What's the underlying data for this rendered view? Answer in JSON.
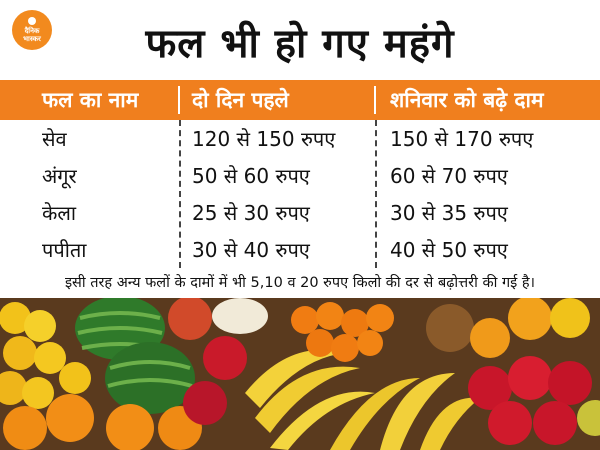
{
  "brand": {
    "logo_text_line1": "दैनिक",
    "logo_text_line2": "भास्कर"
  },
  "headline": "फल भी हो गए महंगे",
  "table": {
    "headers": [
      "फल का नाम",
      "दो दिन पहले",
      "शनिवार को बढ़े दाम"
    ],
    "rows": [
      [
        "सेव",
        "120 से 150 रुपए",
        "150 से 170 रुपए"
      ],
      [
        "अंगूर",
        "50 से 60 रुपए",
        "60 से 70 रुपए"
      ],
      [
        "केला",
        "25 से 30 रुपए",
        "30 से 35 रुपए"
      ],
      [
        "पपीता",
        "30 से 40 रुपए",
        "40 से 50 रुपए"
      ]
    ]
  },
  "footnote": "इसी तरह अन्य फलों के दामों में भी 5,10 व 20 रुपए किलो की दर से बढ़ोत्तरी की गई है।",
  "colors": {
    "accent": "#f07f1e",
    "text": "#111111",
    "background": "#ffffff"
  },
  "image": {
    "subject": "fruit-stall-photo"
  }
}
